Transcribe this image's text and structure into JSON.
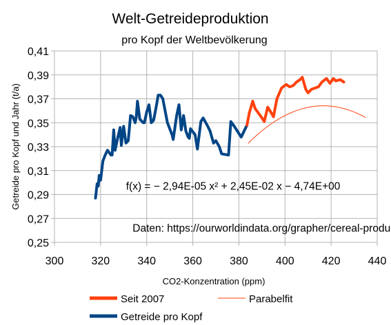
{
  "chart_data": {
    "type": "line",
    "title": "Welt-Getreideproduktion",
    "subtitle": "pro Kopf der Weltbevölkerung",
    "xlabel": "CO2-Konzentration (ppm)",
    "ylabel": "Getreide pro Kopf und Jahr (t/a)",
    "xlim": [
      300,
      440
    ],
    "ylim": [
      0.25,
      0.41
    ],
    "xticks": [
      300,
      320,
      340,
      360,
      380,
      400,
      420,
      440
    ],
    "xtick_labels": [
      "300",
      "320",
      "340",
      "360",
      "380",
      "400",
      "420",
      "440"
    ],
    "yticks": [
      0.25,
      0.27,
      0.29,
      0.31,
      0.33,
      0.35,
      0.37,
      0.39,
      0.41
    ],
    "ytick_labels": [
      "0,25",
      "0,27",
      "0,29",
      "0,31",
      "0,33",
      "0,35",
      "0,37",
      "0,39",
      "0,41"
    ],
    "grid": true,
    "annotations": [
      {
        "text": "f(x) = − 2,94E-05 x² + 2,45E-02 x − 4,74E+00",
        "x": 377.5,
        "y": 0.294
      },
      {
        "text": "Daten: https://ourworldindata.org/grapher/cereal-production?",
        "x": 396,
        "y": 0.259
      }
    ],
    "fit": {
      "a": -2.94e-05,
      "b": 0.0245,
      "c": -4.74,
      "x_start": 384,
      "x_end": 435
    },
    "series": [
      {
        "name": "Getreide pro Kopf",
        "color": "#004586",
        "points": [
          [
            317.8,
            0.287
          ],
          [
            318.5,
            0.299
          ],
          [
            319.0,
            0.297
          ],
          [
            319.4,
            0.306
          ],
          [
            320.0,
            0.302
          ],
          [
            321.0,
            0.318
          ],
          [
            322.0,
            0.323
          ],
          [
            323.0,
            0.327
          ],
          [
            324.5,
            0.323
          ],
          [
            325.0,
            0.323
          ],
          [
            325.7,
            0.344
          ],
          [
            326.3,
            0.327
          ],
          [
            327.5,
            0.338
          ],
          [
            328.5,
            0.346
          ],
          [
            329.0,
            0.331
          ],
          [
            330.0,
            0.347
          ],
          [
            331.0,
            0.333
          ],
          [
            332.0,
            0.335
          ],
          [
            333.0,
            0.356
          ],
          [
            334.0,
            0.355
          ],
          [
            335.0,
            0.35
          ],
          [
            335.5,
            0.355
          ],
          [
            336.0,
            0.368
          ],
          [
            337.0,
            0.353
          ],
          [
            338.5,
            0.35
          ],
          [
            339.0,
            0.35
          ],
          [
            340.0,
            0.359
          ],
          [
            341.0,
            0.365
          ],
          [
            342.0,
            0.35
          ],
          [
            343.0,
            0.352
          ],
          [
            344.0,
            0.362
          ],
          [
            345.0,
            0.373
          ],
          [
            346.0,
            0.373
          ],
          [
            347.0,
            0.37
          ],
          [
            349.0,
            0.35
          ],
          [
            351.0,
            0.34
          ],
          [
            351.5,
            0.336
          ],
          [
            353.0,
            0.356
          ],
          [
            354.0,
            0.365
          ],
          [
            355.0,
            0.344
          ],
          [
            356.0,
            0.356
          ],
          [
            357.0,
            0.343
          ],
          [
            358.0,
            0.338
          ],
          [
            358.5,
            0.337
          ],
          [
            359.0,
            0.345
          ],
          [
            361.0,
            0.34
          ],
          [
            362.0,
            0.328
          ],
          [
            363.5,
            0.351
          ],
          [
            364.5,
            0.354
          ],
          [
            366.5,
            0.347
          ],
          [
            367.5,
            0.343
          ],
          [
            369.0,
            0.333
          ],
          [
            370.0,
            0.335
          ],
          [
            371.5,
            0.33
          ],
          [
            372.5,
            0.324
          ],
          [
            375.5,
            0.323
          ],
          [
            376.5,
            0.351
          ],
          [
            378.0,
            0.347
          ],
          [
            380.0,
            0.341
          ],
          [
            381.0,
            0.338
          ],
          [
            383.5,
            0.348
          ]
        ]
      },
      {
        "name": "Seit 2007",
        "color": "#ff420e",
        "points": [
          [
            383.5,
            0.348
          ],
          [
            384.5,
            0.358
          ],
          [
            386.0,
            0.368
          ],
          [
            387.0,
            0.362
          ],
          [
            388.5,
            0.358
          ],
          [
            390.0,
            0.354
          ],
          [
            391.0,
            0.351
          ],
          [
            392.5,
            0.363
          ],
          [
            393.5,
            0.36
          ],
          [
            395.0,
            0.355
          ],
          [
            396.5,
            0.37
          ],
          [
            398.5,
            0.379
          ],
          [
            400.5,
            0.382
          ],
          [
            402.0,
            0.38
          ],
          [
            403.5,
            0.381
          ],
          [
            405.0,
            0.384
          ],
          [
            406.5,
            0.386
          ],
          [
            407.5,
            0.388
          ],
          [
            409.0,
            0.378
          ],
          [
            410.0,
            0.375
          ],
          [
            411.5,
            0.378
          ],
          [
            413.0,
            0.379
          ],
          [
            414.5,
            0.38
          ],
          [
            416.0,
            0.384
          ],
          [
            418.0,
            0.387
          ],
          [
            419.5,
            0.383
          ],
          [
            421.0,
            0.387
          ],
          [
            422.0,
            0.385
          ],
          [
            424.0,
            0.386
          ],
          [
            425.5,
            0.384
          ]
        ]
      }
    ],
    "legend": {
      "placement": "bottom",
      "entries": [
        {
          "label": "Seit 2007",
          "color": "#ff420e",
          "style": "thick"
        },
        {
          "label": "Parabelfit",
          "color": "#ff420e",
          "style": "thin"
        },
        {
          "label": "Getreide pro Kopf",
          "color": "#004586",
          "style": "thick"
        }
      ]
    }
  }
}
